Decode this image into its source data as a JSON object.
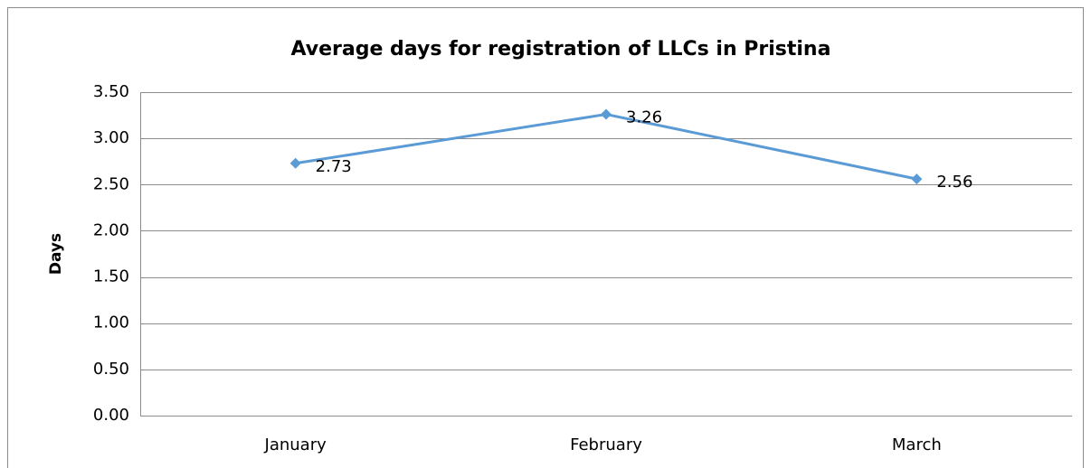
{
  "chart_data": {
    "type": "line",
    "title": "Average days for registration of LLCs in Pristina",
    "y_label": "Days",
    "categories": [
      "January",
      "February",
      "March"
    ],
    "values": [
      2.73,
      3.26,
      2.56
    ],
    "color": "#5b9bd5",
    "ylim": [
      0,
      3.5
    ],
    "yticks": [
      {
        "value": 0,
        "label": "0.00"
      },
      {
        "value": 0.5,
        "label": "0.50"
      },
      {
        "value": 1,
        "label": "1.00"
      },
      {
        "value": 1.5,
        "label": "1.50"
      },
      {
        "value": 2,
        "label": "2.00"
      },
      {
        "value": 2.5,
        "label": "2.50"
      },
      {
        "value": 3,
        "label": "3.00"
      },
      {
        "value": 3.5,
        "label": "3.50"
      }
    ],
    "grid": true
  }
}
